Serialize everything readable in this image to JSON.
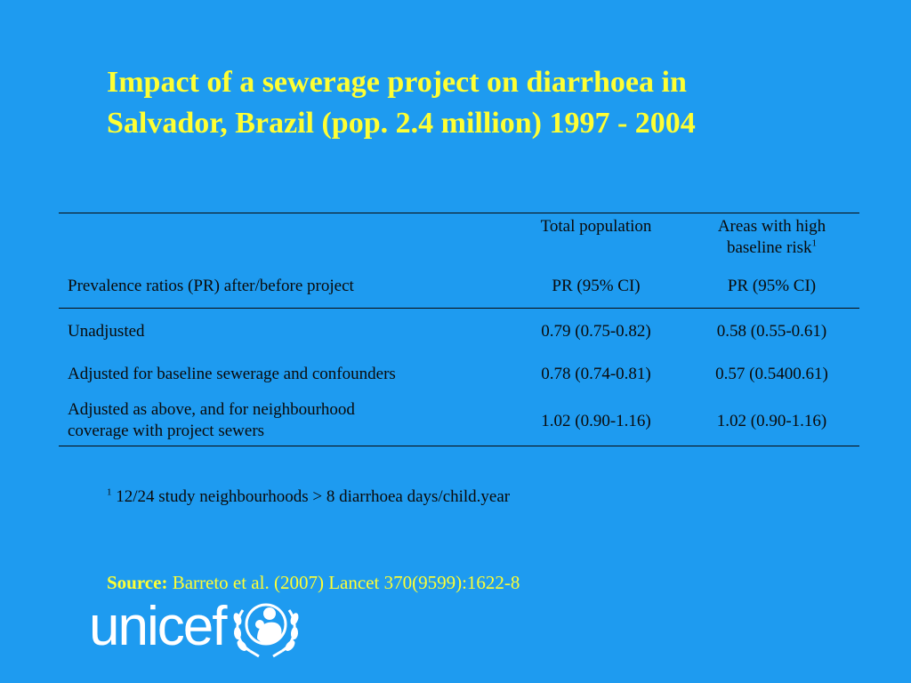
{
  "title": {
    "line1": "Impact of a sewerage project on diarrhoea in",
    "line2": "Salvador, Brazil  (pop. 2.4 million) 1997 - 2004"
  },
  "table": {
    "header": {
      "col2": "Total population",
      "col3_line1": "Areas with high",
      "col3_line2": "baseline risk",
      "col3_sup": "1"
    },
    "subheader": {
      "label": "Prevalence ratios (PR) after/before project",
      "col2": "PR (95% CI)",
      "col3": "PR (95% CI)"
    },
    "rows": [
      {
        "label": "Unadjusted",
        "total": "0.79 (0.75-0.82)",
        "high_risk": "0.58 (0.55-0.61)"
      },
      {
        "label": "Adjusted for baseline sewerage and confounders",
        "total": "0.78 (0.74-0.81)",
        "high_risk": "0.57 (0.5400.61)"
      },
      {
        "label_line1": "Adjusted as above, and for neighbourhood",
        "label_line2": "coverage with project sewers",
        "total": "1.02 (0.90-1.16)",
        "high_risk": "1.02 (0.90-1.16)"
      }
    ]
  },
  "footnote": {
    "marker": "1",
    "text": " 12/24 study neighbourhoods > 8 diarrhoea days/child.year"
  },
  "source": {
    "label": "Source:",
    "text": " Barreto et al. (2007) Lancet 370(9599):1622-8"
  },
  "logo": {
    "text": "unicef",
    "emblem_icon": "unicef-emblem-icon"
  },
  "colors": {
    "background": "#1E9BF0",
    "title": "#FFFF33",
    "table_text": "#0A0A0A",
    "logo": "#FFFFFF"
  }
}
